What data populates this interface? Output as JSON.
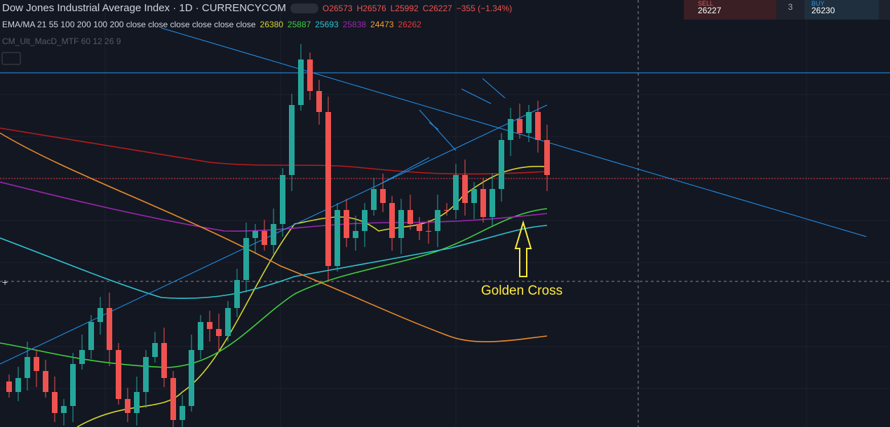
{
  "header": {
    "title": "Dow Jones Industrial Average Index · 1D · CURRENCYCOM",
    "open": "O26573",
    "high": "H26576",
    "low": "L25992",
    "close": "C26227",
    "change": "−355 (−1.34%)"
  },
  "indicators": [
    {
      "label": "EMA/MA 21 55 100 200 100 200 close close close close close close",
      "values": [
        {
          "text": "26380",
          "color": "#d4d62f"
        },
        {
          "text": "25887",
          "color": "#3fcf3f"
        },
        {
          "text": "25693",
          "color": "#2fc4d0"
        },
        {
          "text": "25838",
          "color": "#9c27b0"
        },
        {
          "text": "24473",
          "color": "#f0a030"
        },
        {
          "text": "26262",
          "color": "#e53935"
        }
      ]
    },
    {
      "label": "CM_Ult_MacD_MTF 60 12 26 9"
    }
  ],
  "trade": {
    "sell_label": "SELL",
    "sell_price": "26227",
    "quantity": "3",
    "buy_label": "BUY",
    "buy_price": "26230"
  },
  "annotation": "Golden Cross"
}
